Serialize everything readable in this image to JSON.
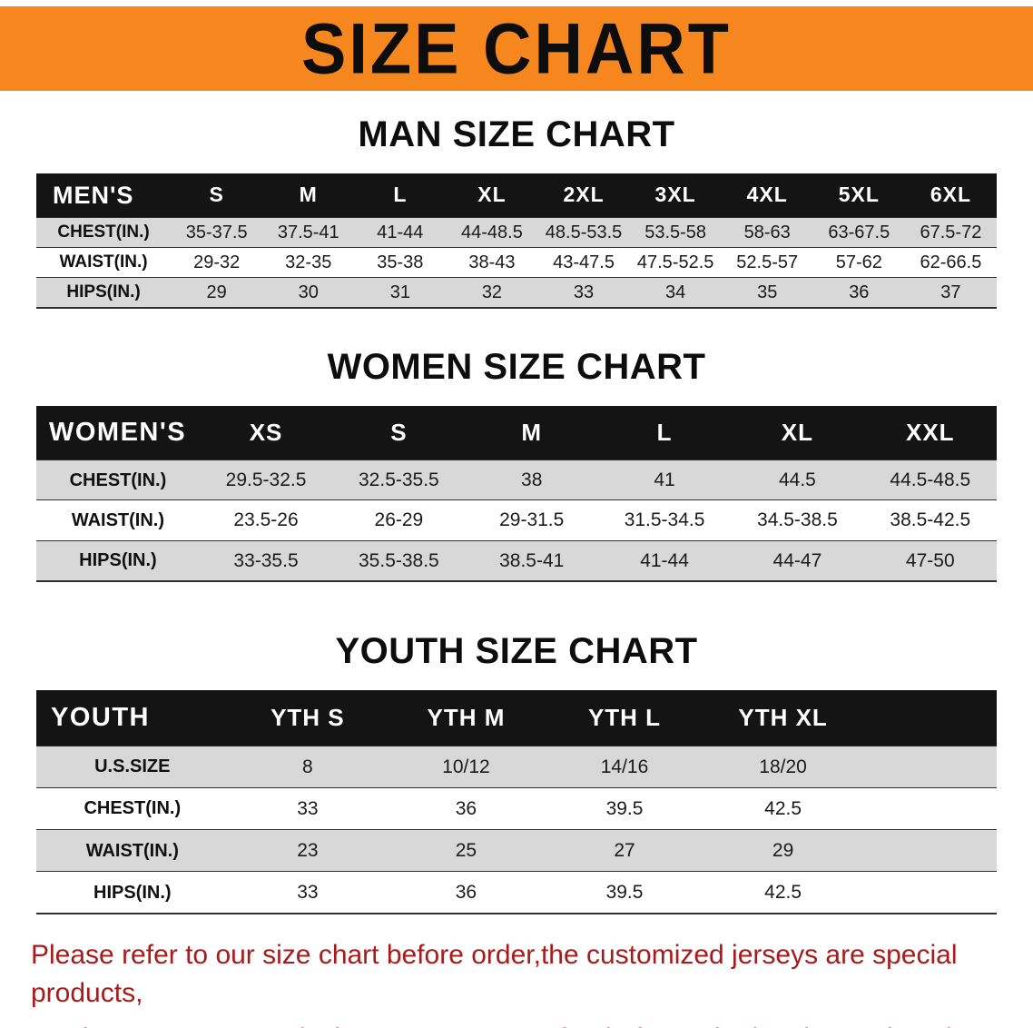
{
  "banner": {
    "title": "SIZE CHART"
  },
  "colors": {
    "banner_bg": "#f6871f",
    "table_header_bg": "#141414",
    "row_shade_bg": "#d8d8d8",
    "note_text": "#a61b1b"
  },
  "chart_data": [
    {
      "type": "table",
      "title": "MAN SIZE CHART",
      "columns": [
        "MEN'S",
        "S",
        "M",
        "L",
        "XL",
        "2XL",
        "3XL",
        "4XL",
        "5XL",
        "6XL"
      ],
      "rows": [
        {
          "label": "CHEST(IN.)",
          "values": [
            "35-37.5",
            "37.5-41",
            "41-44",
            "44-48.5",
            "48.5-53.5",
            "53.5-58",
            "58-63",
            "63-67.5",
            "67.5-72"
          ]
        },
        {
          "label": "WAIST(IN.)",
          "values": [
            "29-32",
            "32-35",
            "35-38",
            "38-43",
            "43-47.5",
            "47.5-52.5",
            "52.5-57",
            "57-62",
            "62-66.5"
          ]
        },
        {
          "label": "HIPS(IN.)",
          "values": [
            "29",
            "30",
            "31",
            "32",
            "33",
            "34",
            "35",
            "36",
            "37"
          ]
        }
      ]
    },
    {
      "type": "table",
      "title": "WOMEN SIZE CHART",
      "columns": [
        "WOMEN'S",
        "XS",
        "S",
        "M",
        "L",
        "XL",
        "XXL"
      ],
      "rows": [
        {
          "label": "CHEST(IN.)",
          "values": [
            "29.5-32.5",
            "32.5-35.5",
            "38",
            "41",
            "44.5",
            "44.5-48.5"
          ]
        },
        {
          "label": "WAIST(IN.)",
          "values": [
            "23.5-26",
            "26-29",
            "29-31.5",
            "31.5-34.5",
            "34.5-38.5",
            "38.5-42.5"
          ]
        },
        {
          "label": "HIPS(IN.)",
          "values": [
            "33-35.5",
            "35.5-38.5",
            "38.5-41",
            "41-44",
            "44-47",
            "47-50"
          ]
        }
      ]
    },
    {
      "type": "table",
      "title": "YOUTH SIZE CHART",
      "columns": [
        "YOUTH",
        "YTH S",
        "YTH M",
        "YTH L",
        "YTH XL"
      ],
      "rows": [
        {
          "label": "U.S.SIZE",
          "values": [
            "8",
            "10/12",
            "14/16",
            "18/20"
          ]
        },
        {
          "label": "CHEST(IN.)",
          "values": [
            "33",
            "36",
            "39.5",
            "42.5"
          ]
        },
        {
          "label": "WAIST(IN.)",
          "values": [
            "23",
            "25",
            "27",
            "29"
          ]
        },
        {
          "label": "HIPS(IN.)",
          "values": [
            "33",
            "36",
            "39.5",
            "42.5"
          ]
        }
      ]
    }
  ],
  "footer": {
    "lines": [
      "Please refer to our size chart before order,the customized jerseys are special products,",
      "we don't accept cancel, change, teturn or refund after order has been placed!"
    ]
  }
}
